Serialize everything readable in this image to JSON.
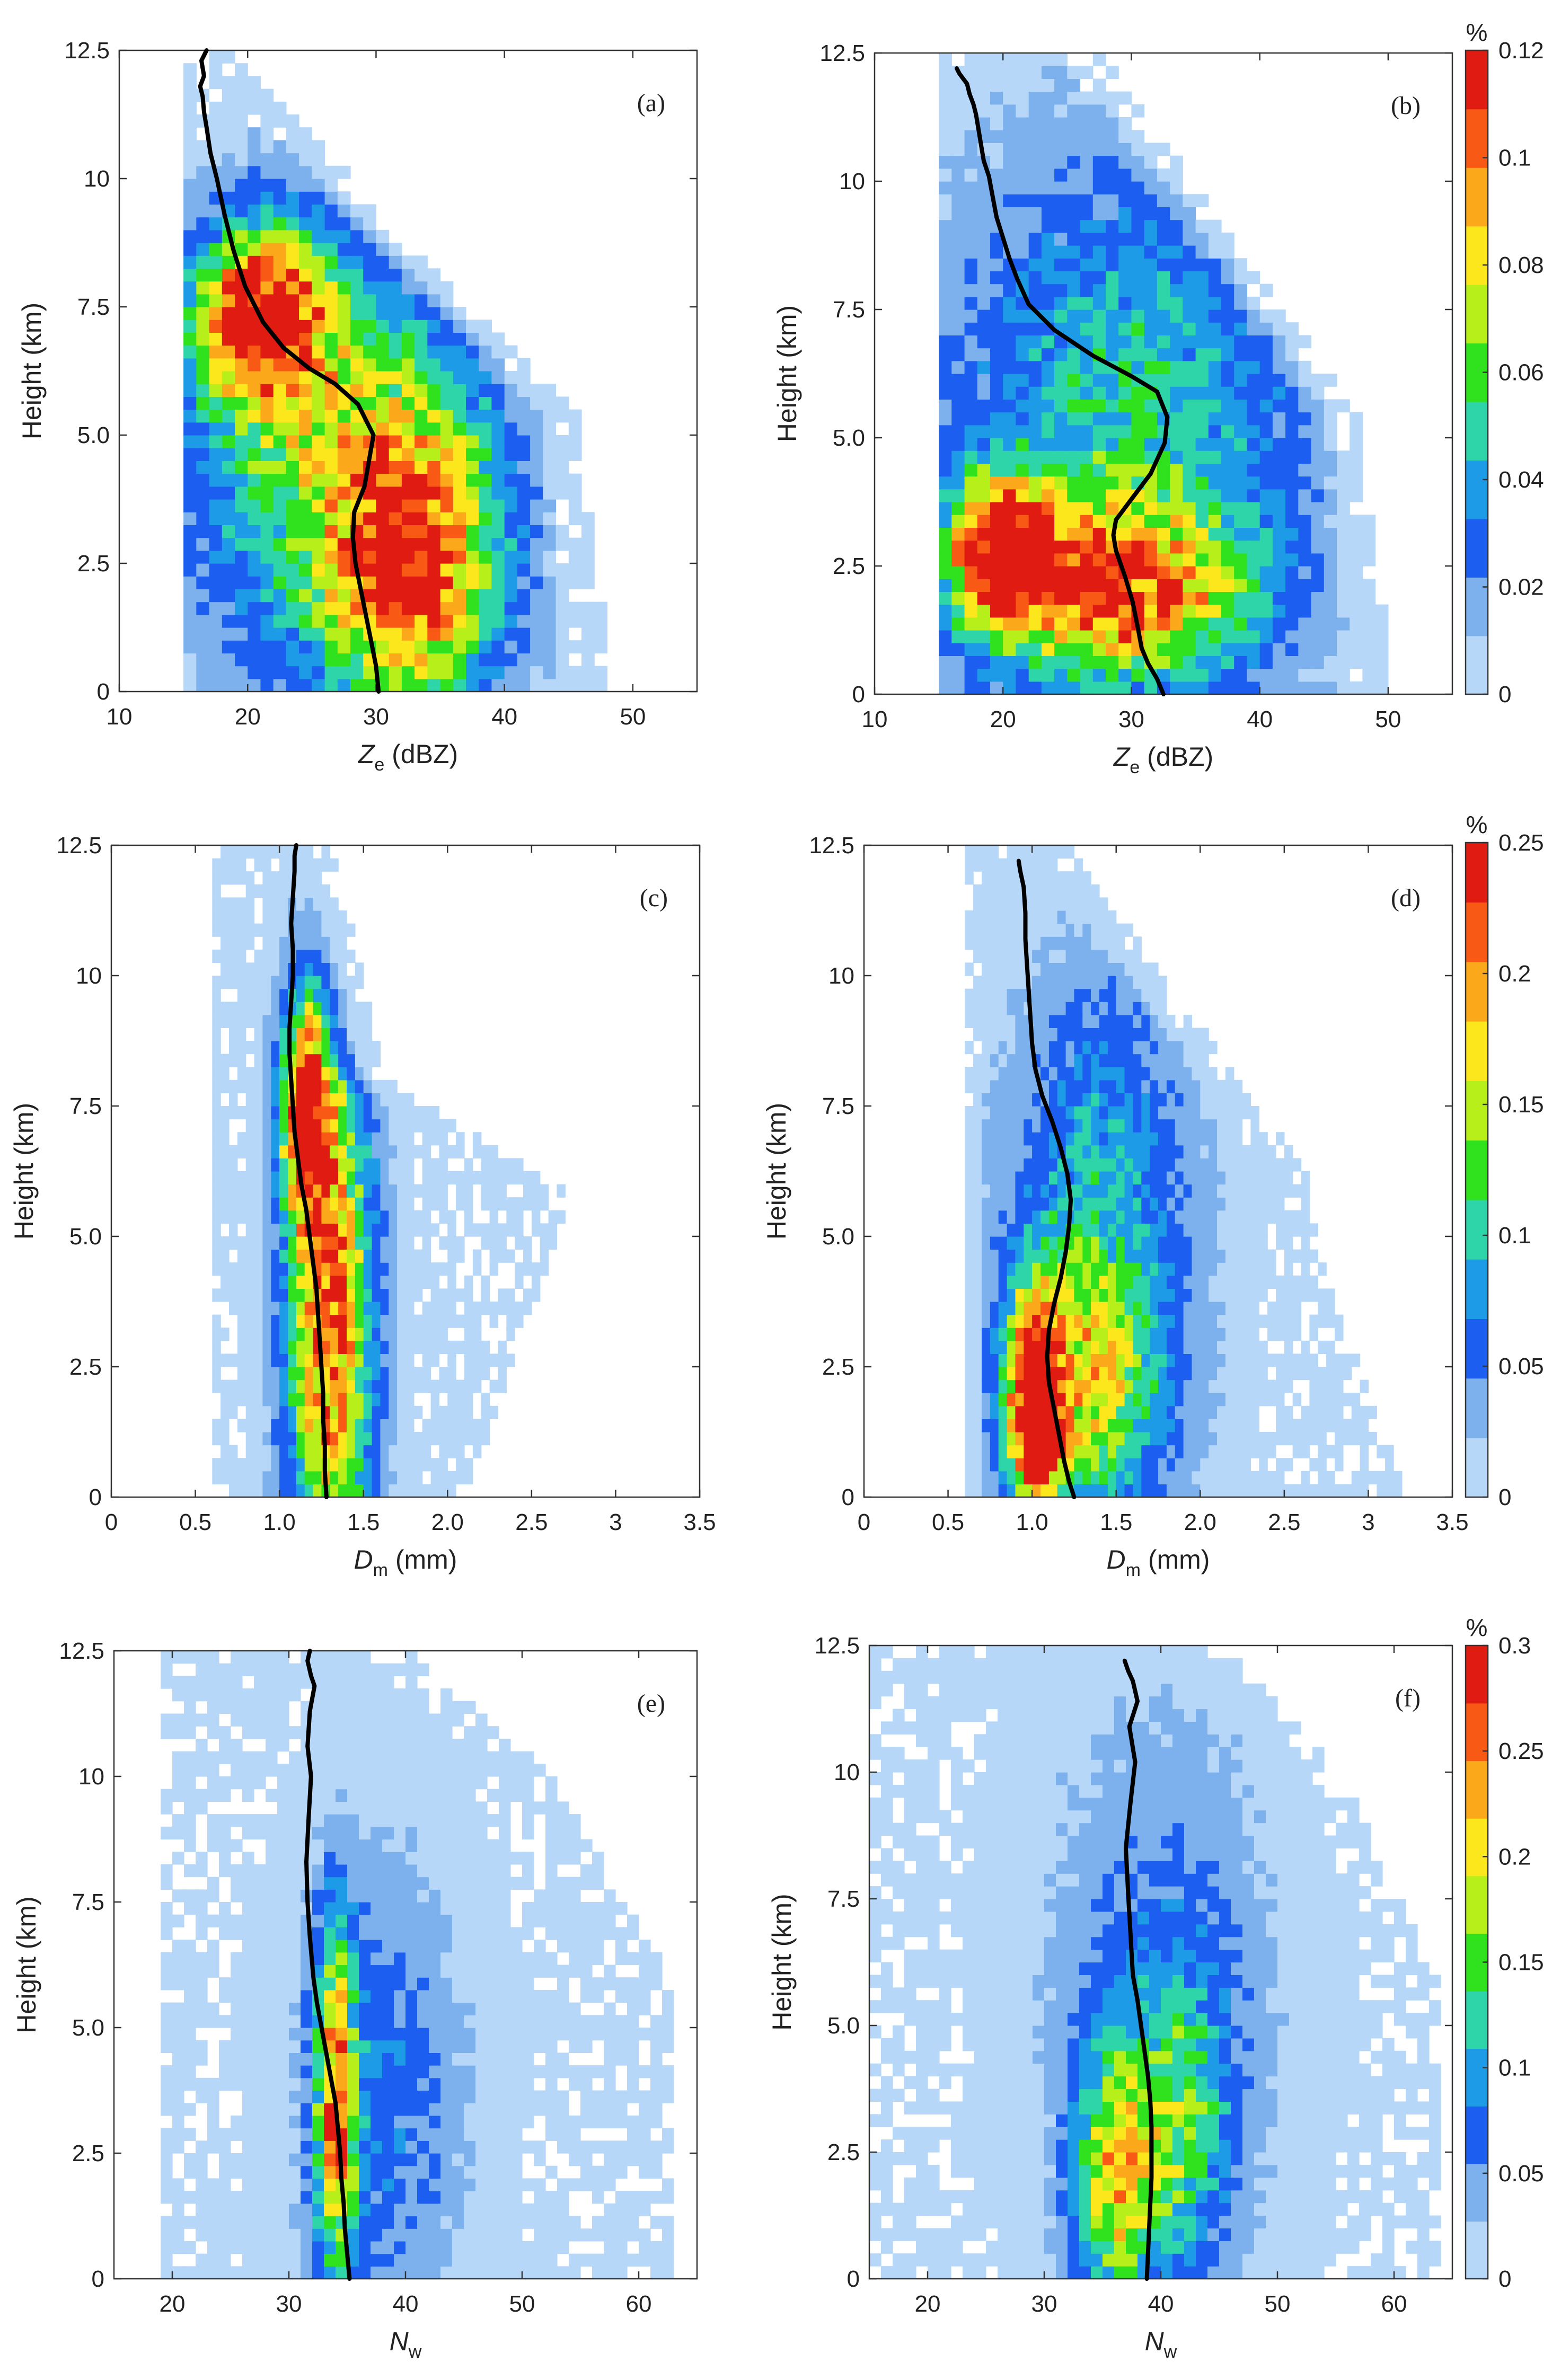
{
  "chart_data": [
    {
      "id": "a",
      "type": "heatmap",
      "panel_label": "(a)",
      "ylabel": "Height (km)",
      "xlabel_main": "Z",
      "xlabel_sub": "e",
      "xlabel_unit": " (dBZ)",
      "xlim": [
        10,
        55
      ],
      "ylim": [
        0,
        12.5
      ],
      "xticks": [
        "10",
        "20",
        "30",
        "40",
        "50"
      ],
      "xtick_values": [
        10,
        20,
        30,
        40,
        50
      ],
      "yticks": [
        "0",
        "2.5",
        "5.0",
        "7.5",
        "10",
        "12.5"
      ],
      "ytick_values": [
        0,
        2.5,
        5,
        7.5,
        10,
        12.5
      ],
      "color_scale_max": 0.12,
      "distribution": {
        "xmin": 15,
        "xstep": 1,
        "ystep": 0.25,
        "left_edge": 15.5,
        "right": [
          [
            0,
            48
          ],
          [
            5.4,
            45
          ],
          [
            12.5,
            18
          ]
        ],
        "peaks": [
          {
            "x": 21,
            "y": 7.3,
            "sx": 3.5,
            "sy": 1.2,
            "v": 0.11
          },
          {
            "x": 33,
            "y": 2.5,
            "sx": 4.5,
            "sy": 2.0,
            "v": 0.085
          },
          {
            "x": 27,
            "y": 4.5,
            "sx": 8,
            "sy": 3,
            "v": 0.06
          }
        ]
      },
      "mean_profile": {
        "x": [
          30.2,
          30.0,
          29.6,
          29.2,
          28.8,
          28.4,
          28.2,
          28.3,
          29.1,
          29.8,
          28.6,
          26.8,
          24.8,
          22.8,
          21.2,
          19.8,
          18.9,
          18.2,
          17.6,
          17.1,
          16.8,
          16.6,
          16.5,
          16.3,
          16.6,
          16.4,
          16.8
        ],
        "y": [
          0,
          0.5,
          1,
          1.5,
          2,
          2.5,
          3,
          3.5,
          4,
          5,
          5.6,
          6,
          6.3,
          6.7,
          7.2,
          7.9,
          8.6,
          9.3,
          10,
          10.5,
          11,
          11.3,
          11.6,
          11.8,
          12,
          12.3,
          12.5
        ]
      }
    },
    {
      "id": "b",
      "type": "heatmap",
      "panel_label": "(b)",
      "ylabel": "Height (km)",
      "xlabel_main": "Z",
      "xlabel_sub": "e",
      "xlabel_unit": " (dBZ)",
      "xlim": [
        10,
        55
      ],
      "ylim": [
        0,
        12.5
      ],
      "xticks": [
        "10",
        "20",
        "30",
        "40",
        "50"
      ],
      "xtick_values": [
        10,
        20,
        30,
        40,
        50
      ],
      "yticks": [
        "0",
        "2.5",
        "5.0",
        "7.5",
        "10",
        "12.5"
      ],
      "ytick_values": [
        0,
        2.5,
        5,
        7.5,
        10,
        12.5
      ],
      "color_scale_max": 0.12,
      "distribution": {
        "xmin": 15,
        "xstep": 1,
        "ystep": 0.25,
        "left_edge": 15.5,
        "right": [
          [
            0,
            50
          ],
          [
            5.5,
            47
          ],
          [
            12.5,
            27
          ]
        ],
        "peaks": [
          {
            "x": 20,
            "y": 2.8,
            "sx": 3,
            "sy": 1.0,
            "v": 0.1
          },
          {
            "x": 29,
            "y": 2.0,
            "sx": 7,
            "sy": 1.2,
            "v": 0.085
          },
          {
            "x": 30,
            "y": 5.5,
            "sx": 10,
            "sy": 3.5,
            "v": 0.045
          }
        ]
      },
      "mean_profile": {
        "x": [
          32.5,
          32.0,
          31.3,
          30.8,
          30.5,
          30.1,
          29.5,
          28.8,
          28.6,
          28.8,
          30.0,
          31.5,
          32.6,
          32.8,
          32.0,
          30.0,
          27.0,
          24.0,
          22.0,
          21.1,
          20.5,
          20.0,
          19.5,
          19.2,
          18.9,
          18.5,
          18.3,
          18.1,
          17.9,
          17.7,
          17.4,
          17.2,
          16.9,
          16.6,
          16.4
        ],
        "y": [
          0,
          0.3,
          0.6,
          0.9,
          1.3,
          1.8,
          2.3,
          2.8,
          3.1,
          3.4,
          3.8,
          4.3,
          4.9,
          5.4,
          5.9,
          6.2,
          6.6,
          7.1,
          7.6,
          8.1,
          8.5,
          8.9,
          9.3,
          9.7,
          10.1,
          10.4,
          10.7,
          11.0,
          11.3,
          11.5,
          11.7,
          11.9,
          12.0,
          12.1,
          12.2
        ]
      }
    },
    {
      "id": "c",
      "type": "heatmap",
      "panel_label": "(c)",
      "ylabel": "Height (km)",
      "xlabel_main": "D",
      "xlabel_sub": "m",
      "xlabel_unit": " (mm)",
      "xlim": [
        0,
        3.5
      ],
      "ylim": [
        0,
        12.5
      ],
      "xticks": [
        "0",
        "0.5",
        "1.0",
        "1.5",
        "2.0",
        "2.5",
        "3",
        "3.5"
      ],
      "xtick_values": [
        0,
        0.5,
        1,
        1.5,
        2,
        2.5,
        3,
        3.5
      ],
      "yticks": [
        "0",
        "2.5",
        "5.0",
        "7.5",
        "10",
        "12.5"
      ],
      "ytick_values": [
        0,
        2.5,
        5,
        7.5,
        10,
        12.5
      ],
      "color_scale_max": 0.25,
      "distribution": {
        "xmin": 0.6,
        "xstep": 0.05,
        "ystep": 0.25,
        "left_edge": 0.62,
        "right": [
          [
            0,
            2.1
          ],
          [
            5.8,
            2.7
          ],
          [
            8,
            1.6
          ],
          [
            12.5,
            1.3
          ]
        ],
        "peaks": [
          {
            "x": 1.3,
            "y": 3.5,
            "sx": 0.18,
            "sy": 3.8,
            "v": 0.22
          },
          {
            "x": 1.15,
            "y": 7.5,
            "sx": 0.1,
            "sy": 1.5,
            "v": 0.2
          }
        ]
      },
      "mean_profile": {
        "x": [
          1.28,
          1.27,
          1.27,
          1.26,
          1.26,
          1.25,
          1.24,
          1.23,
          1.22,
          1.2,
          1.18,
          1.16,
          1.13,
          1.11,
          1.09,
          1.08,
          1.07,
          1.06,
          1.06,
          1.07,
          1.08,
          1.08,
          1.07,
          1.08,
          1.09,
          1.09,
          1.1
        ],
        "y": [
          0,
          0.5,
          1,
          1.5,
          2,
          2.5,
          3,
          3.5,
          4,
          4.5,
          5,
          5.5,
          6,
          6.5,
          7,
          7.5,
          8,
          8.5,
          9,
          9.5,
          10,
          10.5,
          11,
          11.5,
          12,
          12.3,
          12.5
        ]
      }
    },
    {
      "id": "d",
      "type": "heatmap",
      "panel_label": "(d)",
      "ylabel": "Height (km)",
      "xlabel_main": "D",
      "xlabel_sub": "m",
      "xlabel_unit": " (mm)",
      "xlim": [
        0,
        3.5
      ],
      "ylim": [
        0,
        12.5
      ],
      "xticks": [
        "0",
        "0.5",
        "1.0",
        "1.5",
        "2.0",
        "2.5",
        "3",
        "3.5"
      ],
      "xtick_values": [
        0,
        0.5,
        1,
        1.5,
        2,
        2.5,
        3,
        3.5
      ],
      "yticks": [
        "0",
        "2.5",
        "5.0",
        "7.5",
        "10",
        "12.5"
      ],
      "ytick_values": [
        0,
        2.5,
        5,
        7.5,
        10,
        12.5
      ],
      "color_scale_max": 0.25,
      "distribution": {
        "xmin": 0.6,
        "xstep": 0.05,
        "ystep": 0.25,
        "left_edge": 0.7,
        "right": [
          [
            0,
            3.2
          ],
          [
            4.5,
            2.7
          ],
          [
            6.2,
            2.6
          ],
          [
            12.5,
            1.2
          ]
        ],
        "peaks": [
          {
            "x": 1.02,
            "y": 1.8,
            "sx": 0.1,
            "sy": 1.4,
            "v": 0.25
          },
          {
            "x": 1.3,
            "y": 2.0,
            "sx": 0.35,
            "sy": 1.8,
            "v": 0.14
          },
          {
            "x": 1.4,
            "y": 6.0,
            "sx": 0.4,
            "sy": 3.0,
            "v": 0.08
          }
        ]
      },
      "mean_profile": {
        "x": [
          1.25,
          1.22,
          1.19,
          1.16,
          1.13,
          1.1,
          1.09,
          1.1,
          1.13,
          1.17,
          1.2,
          1.22,
          1.23,
          1.21,
          1.17,
          1.12,
          1.06,
          1.02,
          1.0,
          0.99,
          0.98,
          0.97,
          0.96,
          0.96,
          0.95,
          0.93,
          0.92
        ],
        "y": [
          0,
          0.3,
          0.7,
          1.2,
          1.7,
          2.2,
          2.7,
          3.2,
          3.7,
          4.2,
          4.7,
          5.2,
          5.7,
          6.2,
          6.7,
          7.2,
          7.7,
          8.2,
          8.7,
          9.2,
          9.7,
          10.2,
          10.7,
          11.2,
          11.7,
          12.0,
          12.2
        ]
      }
    },
    {
      "id": "e",
      "type": "heatmap",
      "panel_label": "(e)",
      "ylabel": "Height (km)",
      "xlabel_main": "N",
      "xlabel_sub": "w",
      "xlabel_unit": "",
      "xlim": [
        15,
        65
      ],
      "ylim": [
        0,
        12.5
      ],
      "xticks": [
        "20",
        "30",
        "40",
        "50",
        "60"
      ],
      "xtick_values": [
        20,
        30,
        40,
        50,
        60
      ],
      "yticks": [
        "0",
        "2.5",
        "5.0",
        "7.5",
        "10",
        "12.5"
      ],
      "ytick_values": [
        0,
        2.5,
        5,
        7.5,
        10,
        12.5
      ],
      "color_scale_max": 0.3,
      "distribution": {
        "xmin": 19,
        "xstep": 1,
        "ystep": 0.25,
        "left_edge": 19.5,
        "right": [
          [
            0,
            63
          ],
          [
            6,
            62
          ],
          [
            10,
            52
          ],
          [
            12.5,
            40
          ]
        ],
        "peaks": [
          {
            "x": 34,
            "y": 3.5,
            "sx": 1.2,
            "sy": 2.5,
            "v": 0.22
          },
          {
            "x": 38,
            "y": 3.5,
            "sx": 5.0,
            "sy": 3.5,
            "v": 0.07
          }
        ]
      },
      "mean_profile": {
        "x": [
          35.2,
          35.0,
          34.8,
          34.7,
          34.5,
          34.4,
          34.2,
          34.0,
          33.6,
          33.2,
          32.8,
          32.4,
          32.1,
          31.8,
          31.6,
          31.5,
          31.7,
          31.9,
          31.6,
          31.8,
          32.2,
          31.9,
          31.6,
          31.8
        ],
        "y": [
          0,
          0.5,
          1,
          1.5,
          2,
          2.5,
          3,
          3.5,
          4,
          4.5,
          5,
          5.5,
          6,
          6.8,
          7.5,
          8.3,
          9.2,
          10,
          10.6,
          11.3,
          11.8,
          12.0,
          12.3,
          12.5
        ]
      }
    },
    {
      "id": "f",
      "type": "heatmap",
      "panel_label": "(f)",
      "ylabel": "Height (km)",
      "xlabel_main": "N",
      "xlabel_sub": "w",
      "xlabel_unit": "",
      "xlim": [
        15,
        65
      ],
      "ylim": [
        0,
        12.5
      ],
      "xticks": [
        "20",
        "30",
        "40",
        "50",
        "60"
      ],
      "xtick_values": [
        20,
        30,
        40,
        50,
        60
      ],
      "yticks": [
        "0",
        "2.5",
        "5.0",
        "7.5",
        "10",
        "12.5"
      ],
      "ytick_values": [
        0,
        2.5,
        5,
        7.5,
        10,
        12.5
      ],
      "color_scale_max": 0.3,
      "distribution": {
        "xmin": 15,
        "xstep": 1,
        "ystep": 0.25,
        "left_edge": 15.5,
        "right": [
          [
            0,
            64
          ],
          [
            6,
            63
          ],
          [
            10,
            55
          ],
          [
            12.5,
            45
          ]
        ],
        "peaks": [
          {
            "x": 36,
            "y": 2.0,
            "sx": 2.5,
            "sy": 1.8,
            "v": 0.18
          },
          {
            "x": 42,
            "y": 3.0,
            "sx": 3.0,
            "sy": 2.0,
            "v": 0.11
          },
          {
            "x": 40,
            "y": 6.0,
            "sx": 7.0,
            "sy": 4.0,
            "v": 0.06
          }
        ]
      },
      "mean_profile": {
        "x": [
          38.8,
          38.9,
          39.0,
          39.1,
          39.2,
          39.2,
          39.2,
          39.1,
          38.9,
          38.6,
          38.3,
          38.0,
          37.6,
          37.4,
          37.2,
          37.0,
          37.4,
          37.8,
          37.3,
          38.0,
          37.6,
          37.2,
          36.9
        ],
        "y": [
          0,
          0.5,
          1,
          1.5,
          2,
          2.5,
          3,
          3.5,
          4,
          4.5,
          5,
          5.5,
          6,
          6.8,
          7.6,
          8.5,
          9.4,
          10.2,
          10.9,
          11.4,
          11.8,
          12.0,
          12.2
        ]
      }
    }
  ],
  "colorbars": [
    {
      "id": "cb1",
      "unit": "%",
      "max": 0.12,
      "ticks": [
        "0",
        "0.02",
        "0.04",
        "0.06",
        "0.08",
        "0.1",
        "0.12"
      ],
      "tick_values": [
        0,
        0.02,
        0.04,
        0.06,
        0.08,
        0.1,
        0.12
      ]
    },
    {
      "id": "cb2",
      "unit": "%",
      "max": 0.25,
      "ticks": [
        "0",
        "0.05",
        "0.1",
        "0.15",
        "0.2",
        "0.25"
      ],
      "tick_values": [
        0,
        0.05,
        0.1,
        0.15,
        0.2,
        0.25
      ]
    },
    {
      "id": "cb3",
      "unit": "%",
      "max": 0.3,
      "ticks": [
        "0",
        "0.05",
        "0.1",
        "0.15",
        "0.2",
        "0.25",
        "0.3"
      ],
      "tick_values": [
        0,
        0.05,
        0.1,
        0.15,
        0.2,
        0.25,
        0.3
      ]
    }
  ],
  "colormap": [
    "#b6d7f7",
    "#7db1ee",
    "#1c5ff0",
    "#1e9be6",
    "#2ed5a8",
    "#2fe21d",
    "#b7ef1a",
    "#fce61c",
    "#fba81a",
    "#f85a16",
    "#e01b12"
  ],
  "profile_color": "#000000"
}
